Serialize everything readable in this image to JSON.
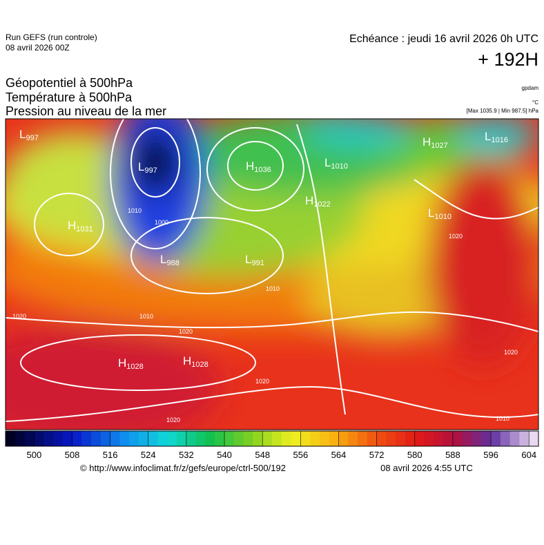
{
  "header": {
    "model": "Run GEFS (run controle)",
    "run_date": "08 avril 2026 00Z",
    "valid_time": "Echéance : jeudi 16 avril 2026 0h UTC",
    "lead": "+ 192H"
  },
  "fields": [
    "Géopotentiel à 500hPa",
    "Température à 500hPa",
    "Pression au niveau de la mer"
  ],
  "units": [
    "gpdam",
    "°C",
    "[Max 1035.9 | Min 987.5] hPa"
  ],
  "pressure_centers": [
    {
      "symbol": "L",
      "value": "997"
    },
    {
      "symbol": "L",
      "value": "997"
    },
    {
      "symbol": "H",
      "value": "1036"
    },
    {
      "symbol": "L",
      "value": "1010"
    },
    {
      "symbol": "H",
      "value": "1027"
    },
    {
      "symbol": "L",
      "value": "1016"
    },
    {
      "symbol": "H",
      "value": "1031"
    },
    {
      "symbol": "H",
      "value": "1022"
    },
    {
      "symbol": "L",
      "value": "1010"
    },
    {
      "symbol": "L",
      "value": "988"
    },
    {
      "symbol": "L",
      "value": "991"
    },
    {
      "symbol": "H",
      "value": "1028"
    },
    {
      "symbol": "H",
      "value": "1028"
    }
  ],
  "isobar_labels": [
    "1020",
    "1010",
    "1020",
    "1020",
    "1020",
    "1010",
    "1020",
    "1000",
    "1010",
    "1010",
    "1020"
  ],
  "colorbar": {
    "limits": [
      494,
      606
    ],
    "ticks": [
      500,
      508,
      516,
      524,
      532,
      540,
      548,
      556,
      564,
      572,
      580,
      588,
      596,
      604
    ]
  },
  "footer": {
    "source": "© http://www.infoclimat.fr/z/gefs/europe/ctrl-500/192",
    "generated": "08 avril 2026  4:55 UTC"
  }
}
